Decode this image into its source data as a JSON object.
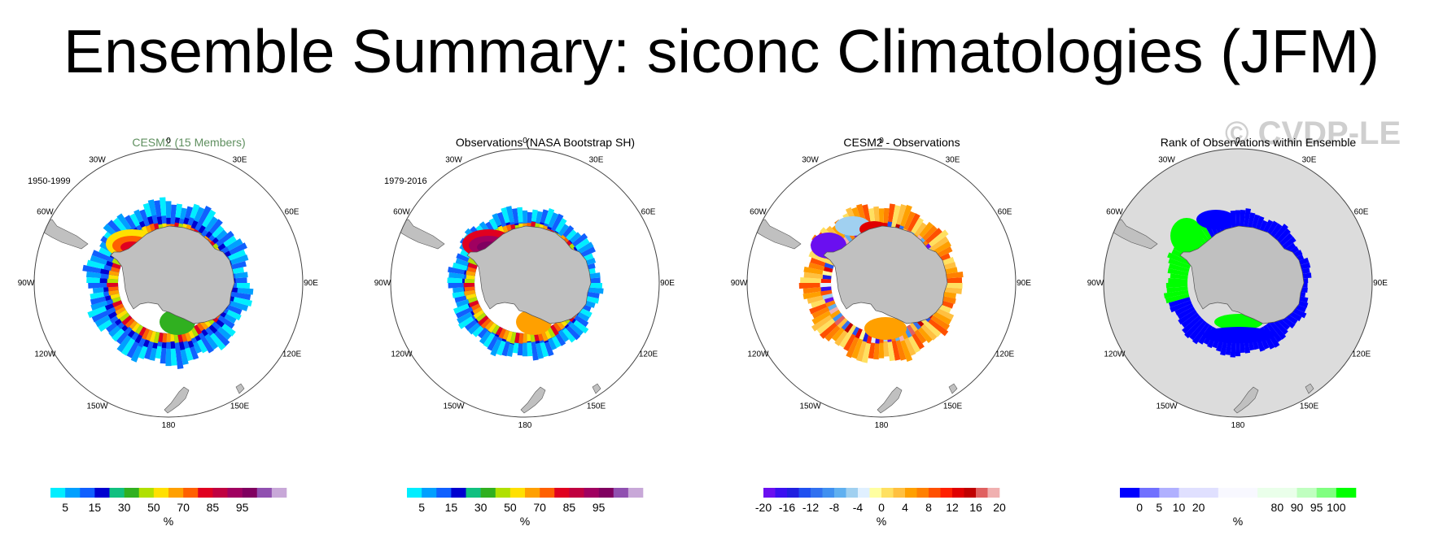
{
  "title": "Ensemble Summary: siconc Climatologies (JFM)",
  "watermark": "© CVDP-LE",
  "longitude_labels": [
    "0",
    "30E",
    "60E",
    "90E",
    "120E",
    "150E",
    "180",
    "150W",
    "120W",
    "90W",
    "60W",
    "30W"
  ],
  "colors": {
    "land": "#c0c0c0",
    "rank_ocean": "#dcdcdc",
    "title_green": "#5f8f5f"
  },
  "panels": [
    {
      "title": "CESM2 (15 Members)",
      "period": "1950-1999",
      "colorbar": {
        "unit": "%",
        "colors": [
          "#00eeff",
          "#00a0ff",
          "#1060ff",
          "#0000d0",
          "#10c080",
          "#30b020",
          "#b0e000",
          "#ffe000",
          "#ffa000",
          "#ff6000",
          "#e00020",
          "#c00040",
          "#a00060",
          "#800060",
          "#9050b0",
          "#c8a8d8"
        ],
        "labels": [
          "5",
          "15",
          "30",
          "50",
          "70",
          "85",
          "95"
        ]
      }
    },
    {
      "title": "Observations (NASA Bootstrap SH)",
      "period": "1979-2016",
      "colorbar": {
        "unit": "%",
        "colors": [
          "#00eeff",
          "#00a0ff",
          "#1060ff",
          "#0000d0",
          "#10c080",
          "#30b020",
          "#b0e000",
          "#ffe000",
          "#ffa000",
          "#ff6000",
          "#e00020",
          "#c00040",
          "#a00060",
          "#800060",
          "#9050b0",
          "#c8a8d8"
        ],
        "labels": [
          "5",
          "15",
          "30",
          "50",
          "70",
          "85",
          "95"
        ]
      }
    },
    {
      "title": "CESM2 - Observations",
      "period": "",
      "colorbar": {
        "unit": "%",
        "colors": [
          "#6a0ff0",
          "#3a10f0",
          "#2020e0",
          "#2050f0",
          "#3070f0",
          "#4090f0",
          "#60b0f0",
          "#a0d0f0",
          "#e0f0ff",
          "#ffffa0",
          "#ffe060",
          "#ffc040",
          "#ffa000",
          "#ff8000",
          "#ff5000",
          "#ff2000",
          "#e00000",
          "#c00000",
          "#e06060",
          "#f0b0b0"
        ],
        "labels": [
          "-20",
          "-16",
          "-12",
          "-8",
          "-4",
          "0",
          "4",
          "8",
          "12",
          "16",
          "20"
        ]
      }
    },
    {
      "title": "Rank of Observations within Ensemble",
      "period": "",
      "colorbar": {
        "unit": "%",
        "colors": [
          "#0000ff",
          "#7070ff",
          "#b0b0ff",
          "#e0e0ff",
          "#e0e0ff",
          "#f8f8ff",
          "#f8f8ff",
          "#eaffea",
          "#eaffea",
          "#c0ffc0",
          "#80ff80",
          "#00ff00"
        ],
        "labels": [
          "0",
          "5",
          "10",
          "20",
          "80",
          "90",
          "95",
          "100"
        ]
      }
    }
  ]
}
